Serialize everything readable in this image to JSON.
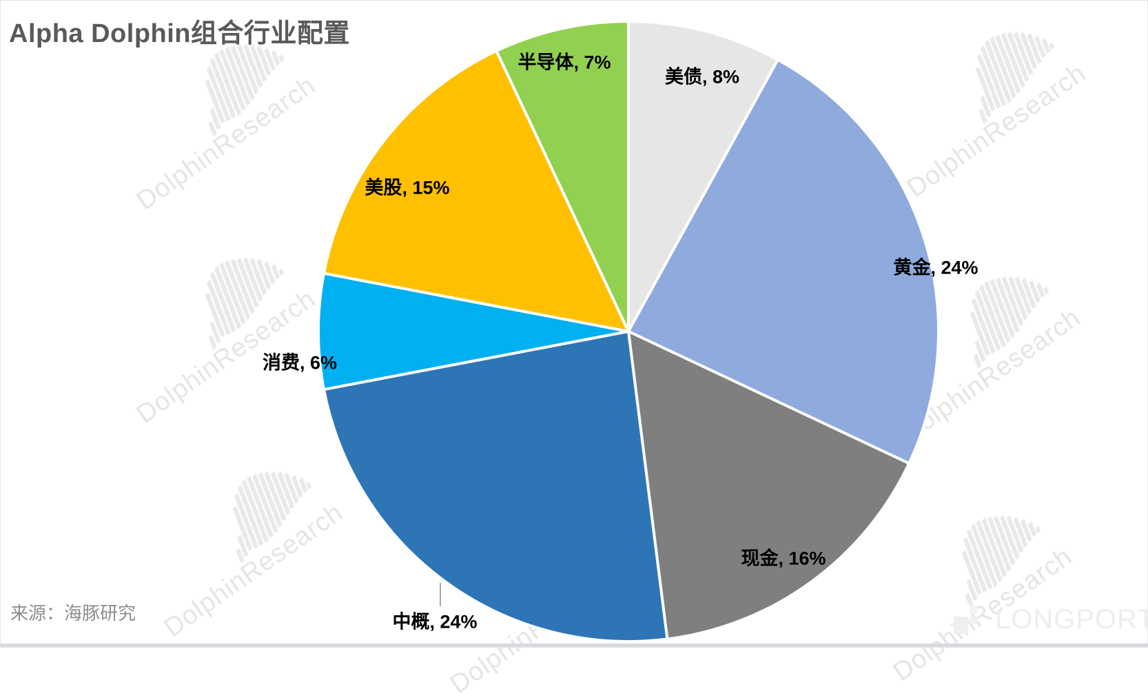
{
  "header": {
    "title": "Alpha Dolphin组合行业配置"
  },
  "chart_data": {
    "type": "pie",
    "title": "Alpha Dolphin组合行业配置",
    "unit": "%",
    "start_angle_deg": 0,
    "direction": "clockwise",
    "legend": "none",
    "label_style": "category-name-and-percent",
    "segments": [
      {
        "label": "美债",
        "value": 8,
        "display": "美债, 8%",
        "color": "#E6E6E6"
      },
      {
        "label": "黄金",
        "value": 24,
        "display": "黄金, 24%",
        "color": "#8FAADC"
      },
      {
        "label": "现金",
        "value": 16,
        "display": "现金, 16%",
        "color": "#7F7F7F"
      },
      {
        "label": "中概",
        "value": 24,
        "display": "中概, 24%",
        "color": "#2E75B6"
      },
      {
        "label": "消费",
        "value": 6,
        "display": "消费, 6%",
        "color": "#00B0F0"
      },
      {
        "label": "美股",
        "value": 15,
        "display": "美股, 15%",
        "color": "#FFC000"
      },
      {
        "label": "半导体",
        "value": 7,
        "display": "半导体, 7%",
        "color": "#92D050"
      }
    ],
    "slice_border_color": "#FFFFFF",
    "title_color": "#595959"
  },
  "footer": {
    "source": "来源：海豚研究"
  },
  "watermark": {
    "text": "DolphinResearch",
    "icon": "dolphin-bars-logo",
    "color": "#E5E5E5"
  },
  "brand": {
    "longport": "LONGPORT"
  }
}
